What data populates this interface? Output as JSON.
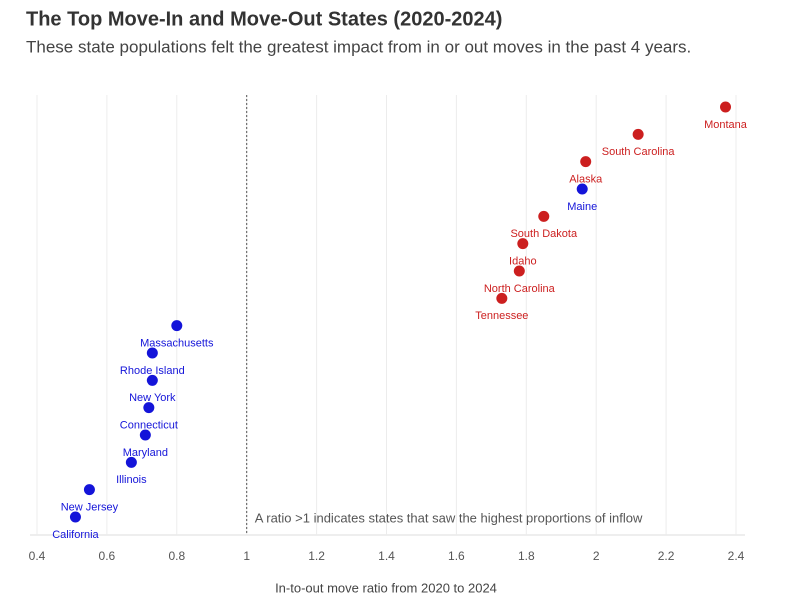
{
  "chart_data": {
    "type": "dot",
    "title": "The Top Move-In and Move-Out States (2020-2024)",
    "subtitle": "These state populations felt the greatest impact from in or out moves in the past 4 years.",
    "x_label": "In-to-out move ratio from 2020 to 2024",
    "annotation": "A ratio >1 indicates states that saw the highest proportions of inflow",
    "categories": [
      "Montana",
      "South Carolina",
      "Alaska",
      "Maine",
      "South Dakota",
      "Idaho",
      "North Carolina",
      "Tennessee",
      "Massachusetts",
      "Rhode Island",
      "New York",
      "Connecticut",
      "Maryland",
      "Illinois",
      "New Jersey",
      "California"
    ],
    "values": [
      2.37,
      2.12,
      1.97,
      1.96,
      1.85,
      1.79,
      1.78,
      1.73,
      0.8,
      0.73,
      0.73,
      0.72,
      0.71,
      0.67,
      0.55,
      0.51
    ],
    "colors": [
      "#cc1f1f",
      "#cc1f1f",
      "#cc1f1f",
      "#1414d9",
      "#cc1f1f",
      "#cc1f1f",
      "#cc1f1f",
      "#cc1f1f",
      "#1414d9",
      "#1414d9",
      "#1414d9",
      "#1414d9",
      "#1414d9",
      "#1414d9",
      "#1414d9",
      "#1414d9"
    ],
    "xlim": [
      0.4,
      2.4
    ],
    "xticks": [
      0.4,
      0.6,
      0.8,
      1,
      1.2,
      1.4,
      1.6,
      1.8,
      2,
      2.2,
      2.4
    ],
    "reference_line": 1,
    "grid": true
  }
}
